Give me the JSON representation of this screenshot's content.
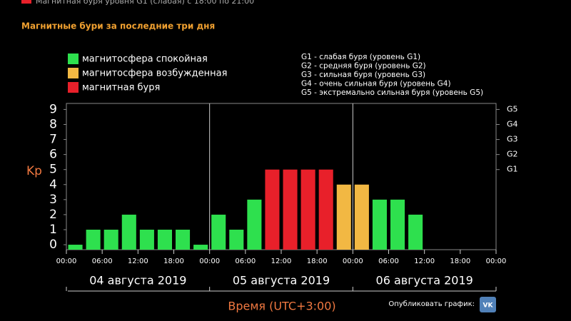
{
  "chart_data": {
    "type": "bar",
    "banner": "Магнитная буря уровня G1 (слабая) с 18:00 по 21:00",
    "banner_color": "#e8202a",
    "title": "Магнитные бури за последние три дня",
    "y_label": "Kp",
    "x_label": "Время (UTC+3:00)",
    "share_label": "Опубликовать график:",
    "share_icon": "VK",
    "x": [
      1.5,
      4.5,
      7.5,
      10.5,
      13.5,
      16.5,
      19.5,
      22.5,
      25.5,
      28.5,
      31.5,
      34.5,
      37.5,
      40.5,
      43.5,
      46.5,
      49.5,
      52.5,
      55.5,
      58.5,
      61.5,
      64.5,
      67.5,
      70.5
    ],
    "series": [
      {
        "name": "магнитосфера спокойная",
        "color": "#2ee04e",
        "values": [
          0,
          1,
          1,
          2,
          1,
          1,
          1,
          0,
          2,
          1,
          3,
          null,
          null,
          null,
          null,
          null,
          null,
          3,
          3,
          2,
          null,
          null,
          null,
          null
        ]
      },
      {
        "name": "магнитосфера возбужденная",
        "color": "#f2b843",
        "values": [
          null,
          null,
          null,
          null,
          null,
          null,
          null,
          null,
          null,
          null,
          null,
          null,
          null,
          null,
          null,
          4,
          4,
          null,
          null,
          null,
          null,
          null,
          null,
          null
        ]
      },
      {
        "name": "магнитная буря",
        "color": "#e8202a",
        "values": [
          null,
          null,
          null,
          null,
          null,
          null,
          null,
          null,
          null,
          null,
          null,
          5,
          5,
          5,
          5,
          null,
          null,
          null,
          null,
          null,
          null,
          null,
          null,
          null
        ]
      }
    ],
    "level_legend": [
      "G1 - слабая буря (уровень G1)",
      "G2 - средняя буря (уровень G2)",
      "G3 - сильная буря (уровень G3)",
      "G4 - очень сильная буря (уровень G4)",
      "G5 - экстремально сильная буря (уровень G5)"
    ],
    "dates": [
      "04 августа 2019",
      "05 августа 2019",
      "06 августа 2019"
    ],
    "ylim": [
      -0.33,
      9.4
    ],
    "yticks": [
      0,
      1,
      2,
      3,
      4,
      5,
      6,
      7,
      8,
      9
    ],
    "y2lim": [
      -0.33,
      9.4
    ],
    "y2ticks": [
      {
        "value": 5,
        "label": "G1"
      },
      {
        "value": 6,
        "label": "G2"
      },
      {
        "value": 7,
        "label": "G3"
      },
      {
        "value": 8,
        "label": "G4"
      },
      {
        "value": 9,
        "label": "G5"
      }
    ],
    "xlim": [
      0,
      72
    ],
    "xticks": [
      {
        "value": 0,
        "label": "00:00"
      },
      {
        "value": 6,
        "label": "06:00"
      },
      {
        "value": 12,
        "label": "12:00"
      },
      {
        "value": 18,
        "label": "18:00"
      },
      {
        "value": 24,
        "label": "00:00"
      },
      {
        "value": 30,
        "label": "06:00"
      },
      {
        "value": 36,
        "label": "12:00"
      },
      {
        "value": 42,
        "label": "18:00"
      },
      {
        "value": 48,
        "label": "00:00"
      },
      {
        "value": 54,
        "label": "06:00"
      },
      {
        "value": 60,
        "label": "12:00"
      },
      {
        "value": 66,
        "label": "18:00"
      },
      {
        "value": 72,
        "label": "00:00"
      }
    ]
  }
}
